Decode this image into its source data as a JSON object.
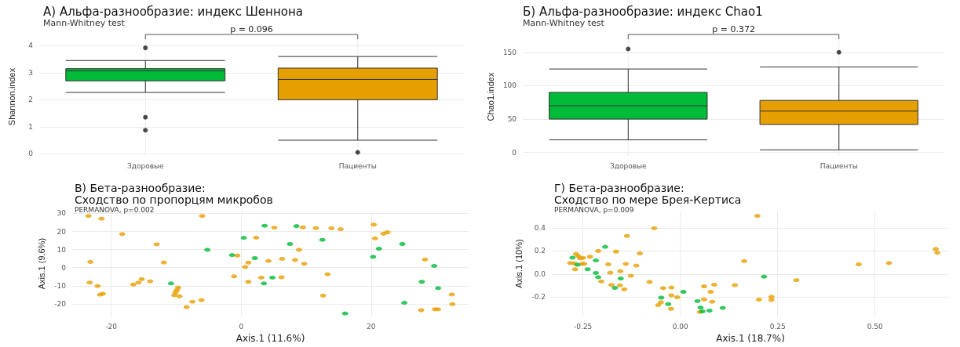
{
  "chart_data": [
    {
      "type": "box",
      "title": "А) Альфа-разнообразие: индекс Шеннона",
      "subtitle": "Mann-Whitney test",
      "ylabel": "Shannon.index",
      "annotations": [
        "p = 0.096"
      ],
      "categories": [
        "Здоровые",
        "Пациенты"
      ],
      "colors": [
        "#00ba38",
        "#e69f00"
      ],
      "boxes": [
        {
          "low": 2.27,
          "q1": 2.7,
          "median": 3.07,
          "q3": 3.15,
          "high": 3.45,
          "outliers": [
            3.92,
            1.35,
            0.87
          ]
        },
        {
          "low": 0.5,
          "q1": 2.0,
          "median": 2.75,
          "q3": 3.17,
          "high": 3.6,
          "outliers": [
            0.05
          ]
        }
      ],
      "ylim": [
        -0.08,
        4.3
      ],
      "yticks": [
        0,
        1,
        2,
        3,
        4
      ],
      "grid": true
    },
    {
      "type": "box",
      "title": "Б) Альфа-разнообразие: индекс Chao1",
      "subtitle": "Mann-Whitney test",
      "ylabel": "Chao1.index",
      "annotations": [
        "p = 0.372"
      ],
      "categories": [
        "Здоровые",
        "Пациенты"
      ],
      "colors": [
        "#00ba38",
        "#e69f00"
      ],
      "boxes": [
        {
          "low": 19,
          "q1": 50,
          "median": 70,
          "q3": 90,
          "high": 125,
          "outliers": [
            155
          ]
        },
        {
          "low": 4,
          "q1": 42,
          "median": 62,
          "q3": 78,
          "high": 128,
          "outliers": [
            150
          ]
        }
      ],
      "ylim": [
        -5,
        172
      ],
      "yticks": [
        0,
        50,
        100,
        150
      ],
      "grid": true
    },
    {
      "type": "scatter",
      "title": "В) Бета-разнообразие:\nСходство по пропорцям микробов",
      "subtitle": "PERMANOVA, p=0.002",
      "xlabel": "Axis.1 (11.6%)",
      "ylabel": "Axis.1 (9.6%)",
      "marker": "circle",
      "grid": true,
      "xlim": [
        -26,
        35
      ],
      "xticks": [
        -20,
        0,
        20
      ],
      "ylim": [
        -27,
        31.5
      ],
      "yticks": [
        -20,
        -10,
        0,
        10,
        20,
        30
      ],
      "series": [
        {
          "color": "#e69f00",
          "x": [
            -23.5,
            -21.5,
            -18.3,
            -6,
            -13,
            -23.2,
            -11.9,
            -23.3,
            -22.1,
            -21.7,
            -21.3,
            -16.6,
            -15.8,
            -15.3,
            -14,
            -9.7,
            -9.9,
            -10.1,
            -10.3,
            -9.5,
            -8.4,
            -7.5,
            -6.1,
            -1.1,
            -0.6,
            5.1,
            2.3,
            9.5,
            11.5,
            13.9,
            15.3,
            8.9,
            6.3,
            8.3,
            4.2,
            1.1,
            0.6,
            9.7,
            1.1,
            3.1,
            6.2,
            13.3,
            12.6,
            20.4,
            20.6,
            21.9,
            22.5,
            28.3,
            32.4,
            32.5,
            27.7,
            29.8,
            30.3
          ],
          "values": [
            28.6,
            27.1,
            18.6,
            28.6,
            12.9,
            3.2,
            2.9,
            -8.2,
            -10.1,
            -14.9,
            -14.4,
            -9.3,
            -8.2,
            -6.3,
            -7.5,
            -11,
            -12.4,
            -13.7,
            -15.2,
            -15.8,
            -21.8,
            -18.8,
            -17.9,
            -4.8,
            6.7,
            22.1,
            16.6,
            22.3,
            21.9,
            21.8,
            21.3,
            9.9,
            4.9,
            4.3,
            3.7,
            2.8,
            0.4,
            2.2,
            -7.8,
            -5.5,
            -5.3,
            -3.6,
            -15.4,
            23.8,
            16.2,
            18.8,
            19.6,
            4.5,
            -14.8,
            -20.1,
            -23.5,
            -23,
            -23
          ]
        },
        {
          "color": "#00ba38",
          "x": [
            -5.2,
            -1.4,
            -10.8,
            3.6,
            0.4,
            8.5,
            7.5,
            12.5,
            2.1,
            4.8,
            3.5,
            21.2,
            20.3,
            24.8,
            29.7,
            27.8,
            30.3,
            25.1,
            16.0
          ],
          "values": [
            9.9,
            7.0,
            -8.7,
            23.2,
            16.5,
            23.0,
            13.1,
            15.4,
            5.3,
            -5.5,
            -8.7,
            10.5,
            6.0,
            13.1,
            1.0,
            -7.8,
            -11.3,
            -19.4,
            -25.3
          ]
        }
      ]
    },
    {
      "type": "scatter",
      "title": "Г) Бета-разнообразие:\nСходство по мере Брея-Кертиса",
      "subtitle": "PERMANOVA, p=0.009",
      "xlabel": "Axis.1 (18.7%)",
      "ylabel": "Axis.1 (10%)",
      "marker": "circle",
      "grid": true,
      "xlim": [
        -0.33,
        0.69
      ],
      "xticks": [
        -0.25,
        {
          "value": 0,
          "label": "0.00"
        },
        0.25,
        {
          "value": 0.5,
          "label": "0.50"
        }
      ],
      "ylim": [
        -0.37,
        0.55
      ],
      "yticks": [
        -0.2,
        {
          "value": 0,
          "label": "0.0"
        },
        0.2,
        0.4
      ],
      "series": [
        {
          "color": "#e69f00",
          "x": [
            -0.067,
            -0.137,
            -0.211,
            -0.165,
            -0.104,
            -0.268,
            -0.262,
            -0.257,
            -0.25,
            -0.232,
            -0.283,
            -0.272,
            -0.247,
            -0.253,
            -0.27,
            -0.185,
            -0.14,
            -0.113,
            -0.18,
            -0.154,
            -0.127,
            -0.203,
            -0.177,
            -0.155,
            -0.144,
            -0.079,
            -0.044,
            -0.023,
            -0.023,
            -0.008,
            -0.05,
            -0.057,
            -0.024,
            0.05,
            0.061,
            0.082,
            0.061,
            0.087,
            0.078,
            0.14,
            0.198,
            0.164,
            0.298,
            0.202,
            0.234,
            0.234,
            0.458,
            0.536,
            0.656,
            0.66
          ],
          "values": [
            0.398,
            0.331,
            0.2,
            0.194,
            0.179,
            0.174,
            0.155,
            0.136,
            0.14,
            0.15,
            0.095,
            0.092,
            0.088,
            0.088,
            0.041,
            0.084,
            0.088,
            0.073,
            0.011,
            0.024,
            -0.015,
            -0.065,
            -0.095,
            -0.099,
            -0.133,
            -0.069,
            -0.123,
            -0.118,
            -0.185,
            -0.202,
            -0.247,
            -0.271,
            -0.303,
            -0.331,
            -0.221,
            -0.241,
            -0.107,
            -0.093,
            -0.155,
            -0.097,
            0.505,
            0.112,
            -0.054,
            -0.223,
            -0.198,
            -0.226,
            0.084,
            0.095,
            0.217,
            0.185
          ]
        },
        {
          "color": "#00ba38",
          "x": [
            -0.193,
            -0.277,
            -0.264,
            -0.238,
            -0.217,
            -0.211,
            -0.217,
            -0.153,
            -0.168,
            -0.049,
            -0.031,
            0.008,
            0.044,
            0.052,
            0.057,
            0.075,
            0.109,
            0.215
          ],
          "values": [
            0.236,
            0.142,
            0.08,
            0.041,
            0.009,
            -0.028,
            0.118,
            -0.039,
            -0.121,
            -0.206,
            -0.262,
            -0.155,
            -0.236,
            -0.292,
            -0.325,
            -0.318,
            -0.295,
            -0.023
          ]
        }
      ]
    }
  ]
}
